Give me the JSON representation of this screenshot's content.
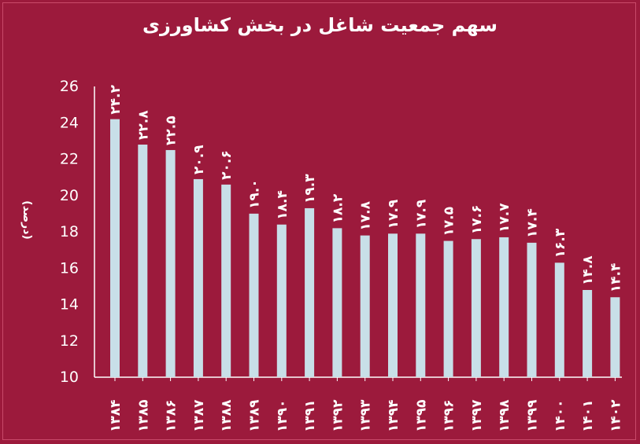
{
  "chart_data": {
    "type": "bar",
    "title": "سهم جمعیت شاغل در بخش کشاورزی",
    "ylabel": "(درصد)",
    "ylim": [
      10,
      26
    ],
    "yticks": [
      "10",
      "12",
      "14",
      "16",
      "18",
      "20",
      "22",
      "24",
      "26"
    ],
    "grid": false,
    "categories": [
      "۱۳۸۴",
      "۱۳۸۵",
      "۱۳۸۶",
      "۱۳۸۷",
      "۱۳۸۸",
      "۱۳۸۹",
      "۱۳۹۰",
      "۱۳۹۱",
      "۱۳۹۲",
      "۱۳۹۳",
      "۱۳۹۴",
      "۱۳۹۵",
      "۱۳۹۶",
      "۱۳۹۷",
      "۱۳۹۸",
      "۱۳۹۹",
      "۱۴۰۰",
      "۱۴۰۱",
      "۱۴۰۲"
    ],
    "values": [
      24.2,
      22.8,
      22.5,
      20.9,
      20.6,
      19.0,
      18.4,
      19.3,
      18.2,
      17.8,
      17.9,
      17.9,
      17.5,
      17.6,
      17.7,
      17.4,
      16.3,
      14.8,
      14.4
    ],
    "value_labels": [
      "۲۴.۲",
      "۲۲.۸",
      "۲۲.۵",
      "۲۰.۹",
      "۲۰.۶",
      "۱۹.۰",
      "۱۸.۴",
      "۱۹.۳",
      "۱۸.۲",
      "۱۷.۸",
      "۱۷.۹",
      "۱۷.۹",
      "۱۷.۵",
      "۱۷.۶",
      "۱۷.۷",
      "۱۷.۴",
      "۱۶.۳",
      "۱۴.۸",
      "۱۴.۴"
    ],
    "bar_color": "#c8dfe8",
    "background": "#9c1a3c"
  }
}
